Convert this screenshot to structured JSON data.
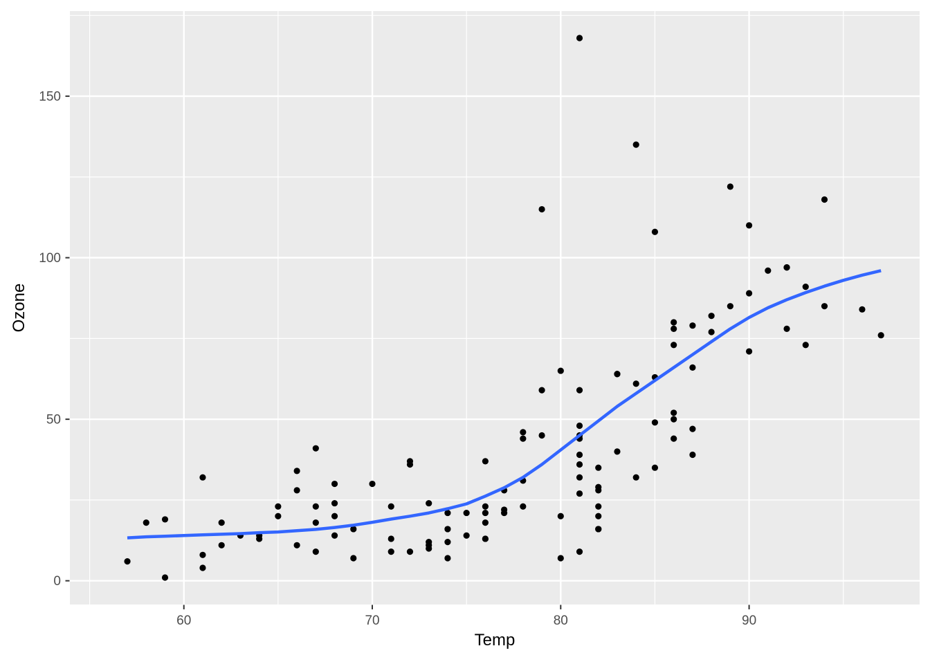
{
  "chart_data": {
    "type": "scatter",
    "title": "",
    "xlabel": "Temp",
    "ylabel": "Ozone",
    "x_ticks": [
      60,
      70,
      80,
      90
    ],
    "x_minor_ticks": [
      55,
      65,
      75,
      85,
      95
    ],
    "y_ticks": [
      0,
      50,
      100,
      150
    ],
    "y_minor_ticks": [
      25,
      75,
      125,
      175
    ],
    "xlim": [
      53.95,
      99.05
    ],
    "ylim": [
      -7.35,
      176.35
    ],
    "grid": "on",
    "legend": "none",
    "points": [
      [
        57,
        6
      ],
      [
        58,
        18
      ],
      [
        59,
        19
      ],
      [
        59,
        1
      ],
      [
        61,
        8
      ],
      [
        61,
        4
      ],
      [
        61,
        32
      ],
      [
        62,
        18
      ],
      [
        62,
        11
      ],
      [
        63,
        14
      ],
      [
        64,
        14
      ],
      [
        64,
        13
      ],
      [
        65,
        23
      ],
      [
        65,
        20
      ],
      [
        66,
        34
      ],
      [
        66,
        28
      ],
      [
        66,
        11
      ],
      [
        67,
        41
      ],
      [
        67,
        23
      ],
      [
        67,
        18
      ],
      [
        67,
        9
      ],
      [
        68,
        30
      ],
      [
        68,
        24
      ],
      [
        68,
        20
      ],
      [
        68,
        14
      ],
      [
        69,
        16
      ],
      [
        69,
        7
      ],
      [
        70,
        30
      ],
      [
        71,
        23
      ],
      [
        71,
        13
      ],
      [
        71,
        9
      ],
      [
        72,
        37
      ],
      [
        72,
        36
      ],
      [
        72,
        9
      ],
      [
        73,
        24
      ],
      [
        73,
        12
      ],
      [
        73,
        11
      ],
      [
        73,
        10
      ],
      [
        74,
        21
      ],
      [
        74,
        16
      ],
      [
        74,
        12
      ],
      [
        74,
        7
      ],
      [
        75,
        21
      ],
      [
        75,
        14
      ],
      [
        76,
        37
      ],
      [
        76,
        23
      ],
      [
        76,
        21
      ],
      [
        76,
        18
      ],
      [
        76,
        13
      ],
      [
        76,
        13
      ],
      [
        77,
        28
      ],
      [
        77,
        22
      ],
      [
        77,
        21
      ],
      [
        78,
        46
      ],
      [
        78,
        44
      ],
      [
        78,
        31
      ],
      [
        78,
        23
      ],
      [
        79,
        115
      ],
      [
        79,
        59
      ],
      [
        79,
        45
      ],
      [
        80,
        65
      ],
      [
        80,
        20
      ],
      [
        80,
        7
      ],
      [
        81,
        168
      ],
      [
        81,
        59
      ],
      [
        81,
        48
      ],
      [
        81,
        45
      ],
      [
        81,
        44
      ],
      [
        81,
        39
      ],
      [
        81,
        36
      ],
      [
        81,
        32
      ],
      [
        81,
        27
      ],
      [
        81,
        9
      ],
      [
        82,
        35
      ],
      [
        82,
        29
      ],
      [
        82,
        28
      ],
      [
        82,
        23
      ],
      [
        82,
        20
      ],
      [
        82,
        16
      ],
      [
        82,
        16
      ],
      [
        83,
        64
      ],
      [
        83,
        64
      ],
      [
        83,
        40
      ],
      [
        84,
        135
      ],
      [
        84,
        61
      ],
      [
        84,
        32
      ],
      [
        85,
        108
      ],
      [
        85,
        63
      ],
      [
        85,
        49
      ],
      [
        85,
        35
      ],
      [
        86,
        80
      ],
      [
        86,
        78
      ],
      [
        86,
        73
      ],
      [
        86,
        52
      ],
      [
        86,
        50
      ],
      [
        86,
        44
      ],
      [
        87,
        79
      ],
      [
        87,
        66
      ],
      [
        87,
        47
      ],
      [
        87,
        39
      ],
      [
        88,
        82
      ],
      [
        88,
        77
      ],
      [
        89,
        122
      ],
      [
        89,
        85
      ],
      [
        90,
        110
      ],
      [
        90,
        89
      ],
      [
        90,
        71
      ],
      [
        91,
        96
      ],
      [
        92,
        97
      ],
      [
        92,
        97
      ],
      [
        92,
        78
      ],
      [
        93,
        91
      ],
      [
        93,
        73
      ],
      [
        94,
        118
      ],
      [
        94,
        85
      ],
      [
        96,
        84
      ],
      [
        97,
        76
      ]
    ],
    "smooth_line": [
      [
        57,
        13.3
      ],
      [
        58,
        13.6
      ],
      [
        59,
        13.8
      ],
      [
        60,
        14.0
      ],
      [
        61,
        14.2
      ],
      [
        62,
        14.4
      ],
      [
        63,
        14.6
      ],
      [
        64,
        14.9
      ],
      [
        65,
        15.1
      ],
      [
        66,
        15.5
      ],
      [
        67,
        15.9
      ],
      [
        68,
        16.5
      ],
      [
        69,
        17.2
      ],
      [
        70,
        18.1
      ],
      [
        71,
        19.1
      ],
      [
        72,
        20.0
      ],
      [
        73,
        21.0
      ],
      [
        74,
        22.3
      ],
      [
        75,
        23.8
      ],
      [
        76,
        26.2
      ],
      [
        77,
        28.8
      ],
      [
        78,
        32.0
      ],
      [
        79,
        36.0
      ],
      [
        80,
        40.5
      ],
      [
        81,
        45.0
      ],
      [
        82,
        49.5
      ],
      [
        83,
        54.0
      ],
      [
        84,
        58.0
      ],
      [
        85,
        62.0
      ],
      [
        86,
        66.0
      ],
      [
        87,
        70.0
      ],
      [
        88,
        74.0
      ],
      [
        89,
        78.0
      ],
      [
        90,
        81.5
      ],
      [
        91,
        84.5
      ],
      [
        92,
        87.0
      ],
      [
        93,
        89.2
      ],
      [
        94,
        91.2
      ],
      [
        95,
        93.0
      ],
      [
        96,
        94.6
      ],
      [
        97,
        96.0
      ]
    ],
    "colors": {
      "point": "#000000",
      "smooth": "#3366FF",
      "panel_bg": "#EBEBEB",
      "gridline": "#FFFFFF",
      "tick_label": "#4D4D4D",
      "axis_title": "#000000",
      "tick_mark": "#333333",
      "page_bg": "#FFFFFF"
    }
  }
}
